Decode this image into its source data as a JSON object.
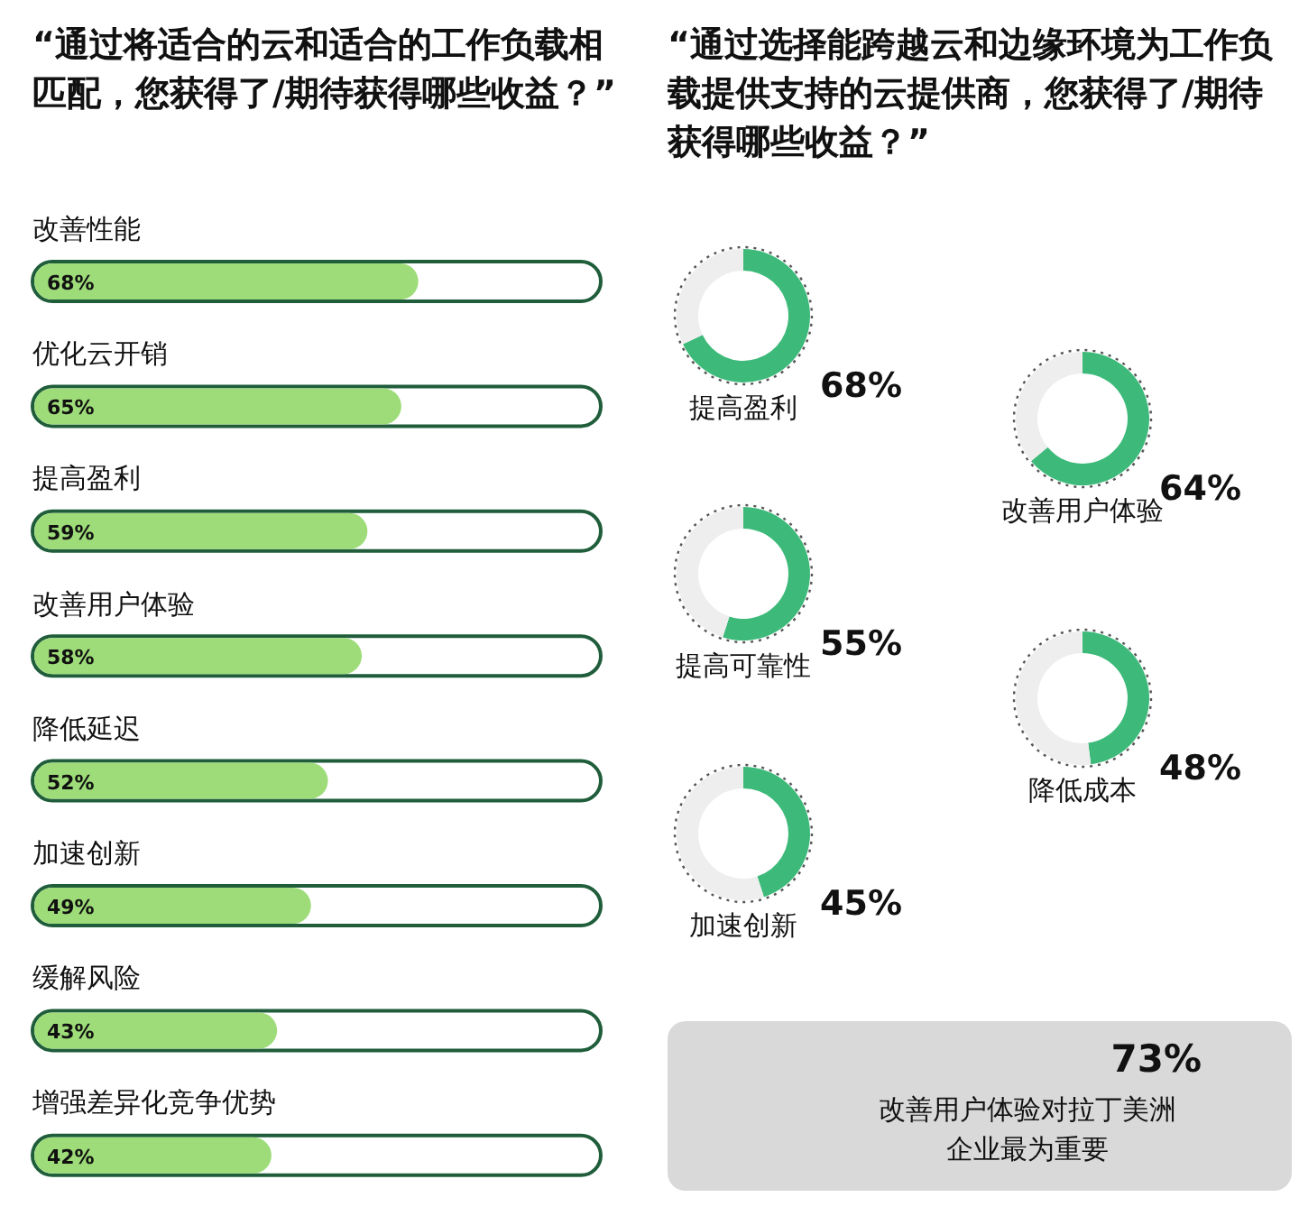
{
  "chart_data": [
    {
      "type": "bar",
      "orientation": "horizontal",
      "title": "“通过将适合的云和适合的工作负载相匹配，您获得了/期待获得哪些收益？”",
      "categories": [
        "改善性能",
        "优化云开销",
        "提高盈利",
        "改善用户体验",
        "降低延迟",
        "加速创新",
        "缓解风险",
        "增强差异化竞争优势"
      ],
      "values": [
        68,
        65,
        59,
        58,
        52,
        49,
        43,
        42
      ],
      "value_labels": [
        "68%",
        "65%",
        "59%",
        "58%",
        "52%",
        "49%",
        "43%",
        "42%"
      ],
      "color": "#9ddc78"
    },
    {
      "type": "donut",
      "title": "“通过选择能跨越云和边缘环境为工作负载提供支持的云提供商，您获得了/期待获得哪些收益？”",
      "categories": [
        "提高盈利",
        null
      ],
      "values": [
        68,
        32
      ],
      "value_labels": [
        "68%",
        null
      ],
      "colors": [
        "#3dba7a",
        "#eeeeee"
      ]
    },
    {
      "type": "donut",
      "categories": [
        "改善用户体验",
        null
      ],
      "values": [
        64,
        36
      ],
      "value_labels": [
        "64%",
        null
      ],
      "colors": [
        "#3dba7a",
        "#eeeeee"
      ]
    },
    {
      "type": "donut",
      "categories": [
        "提高可靠性",
        null
      ],
      "values": [
        55,
        45
      ],
      "value_labels": [
        "55%",
        null
      ],
      "colors": [
        "#3dba7a",
        "#eeeeee"
      ]
    },
    {
      "type": "donut",
      "categories": [
        "降低成本",
        null
      ],
      "values": [
        48,
        52
      ],
      "value_labels": [
        "48%",
        null
      ],
      "colors": [
        "#3dba7a",
        "#eeeeee"
      ]
    },
    {
      "type": "donut",
      "categories": [
        "加速创新",
        null
      ],
      "values": [
        45,
        55
      ],
      "value_labels": [
        "45%",
        null
      ],
      "colors": [
        "#3dba7a",
        "#eeeeee"
      ]
    },
    {
      "type": "other",
      "categories": [
        "改善用户体验对拉丁美洲企业最为重要"
      ],
      "value_labels": [
        "73%"
      ]
    }
  ]
}
